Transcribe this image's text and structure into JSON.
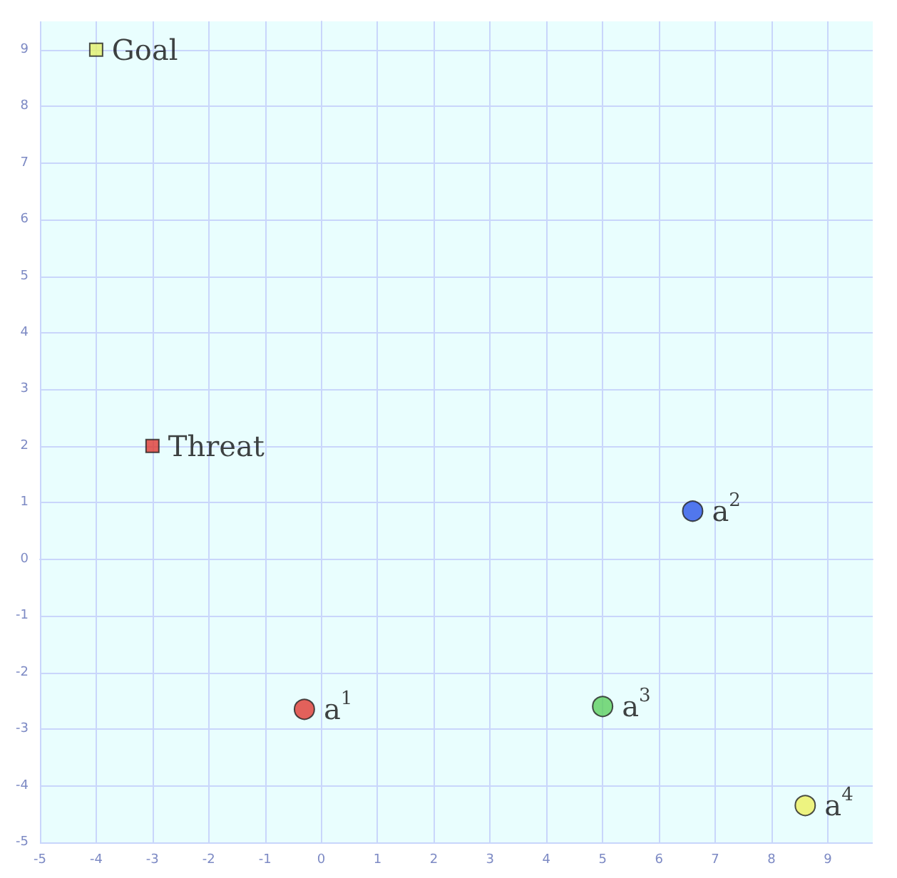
{
  "chart_data": {
    "type": "scatter",
    "xlim": [
      -5,
      9.8
    ],
    "ylim": [
      -5,
      9.5
    ],
    "xticks": [
      -5,
      -4,
      -3,
      -2,
      -1,
      0,
      1,
      2,
      3,
      4,
      5,
      6,
      7,
      8,
      9
    ],
    "yticks": [
      -5,
      -4,
      -3,
      -2,
      -1,
      0,
      1,
      2,
      3,
      4,
      5,
      6,
      7,
      8,
      9
    ],
    "grid": true,
    "legend": false,
    "series": [
      {
        "name": "Goal",
        "color": "#e4f06a",
        "x": [
          -4
        ],
        "values": [
          9
        ],
        "marker": "square"
      },
      {
        "name": "Threat",
        "color": "#e03a32",
        "x": [
          -3
        ],
        "values": [
          2
        ],
        "marker": "square"
      },
      {
        "name": "a$^{1}$",
        "color": "#e03a32",
        "x": [
          -0.3
        ],
        "values": [
          -2.65
        ],
        "marker": "circle"
      },
      {
        "name": "a$^{2}$",
        "color": "#2a55e8",
        "x": [
          6.6
        ],
        "values": [
          0.85
        ],
        "marker": "circle"
      },
      {
        "name": "a$^{3}$",
        "color": "#5ed060",
        "x": [
          5
        ],
        "values": [
          -2.6
        ],
        "marker": "circle"
      },
      {
        "name": "a$^{4}$",
        "color": "#eef060",
        "x": [
          8.6
        ],
        "values": [
          -4.35
        ],
        "marker": "circle"
      }
    ]
  }
}
